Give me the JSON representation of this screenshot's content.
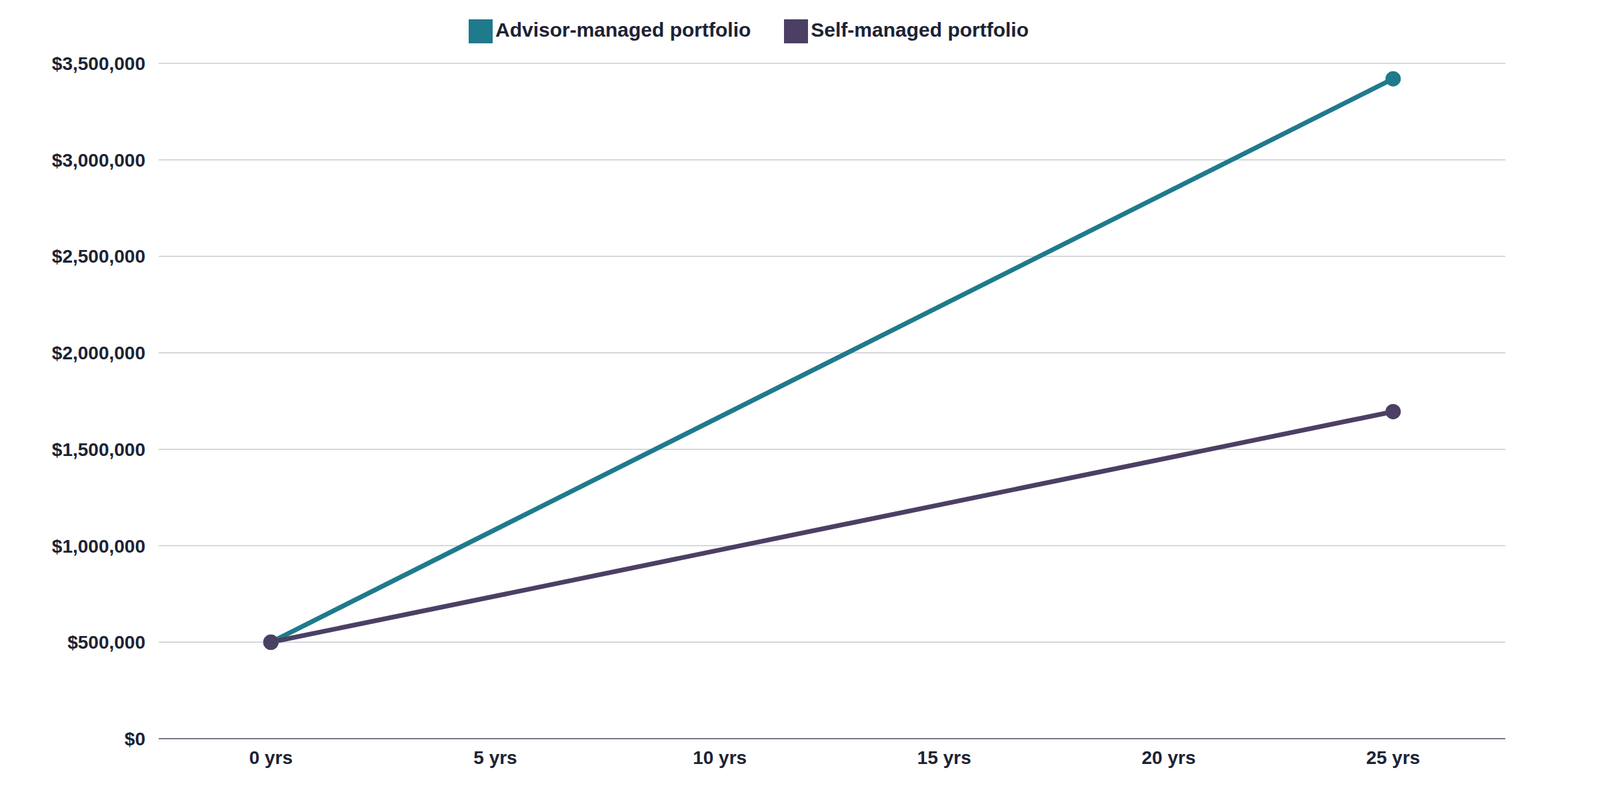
{
  "chart_data": {
    "type": "line",
    "x": [
      0,
      25
    ],
    "xlim": [
      -2.5,
      27.5
    ],
    "xticks": [
      {
        "value": 0,
        "label": "0 yrs"
      },
      {
        "value": 5,
        "label": "5 yrs"
      },
      {
        "value": 10,
        "label": "10 yrs"
      },
      {
        "value": 15,
        "label": "15 yrs"
      },
      {
        "value": 20,
        "label": "20 yrs"
      },
      {
        "value": 25,
        "label": "25 yrs"
      }
    ],
    "ylim": [
      0,
      3500000
    ],
    "yticks": [
      {
        "value": 0,
        "label": "$0"
      },
      {
        "value": 500000,
        "label": "$500,000"
      },
      {
        "value": 1000000,
        "label": "$1,000,000"
      },
      {
        "value": 1500000,
        "label": "$1,500,000"
      },
      {
        "value": 2000000,
        "label": "$2,000,000"
      },
      {
        "value": 2500000,
        "label": "$2,500,000"
      },
      {
        "value": 3000000,
        "label": "$3,000,000"
      },
      {
        "value": 3500000,
        "label": "$3,500,000"
      }
    ],
    "grid": true,
    "legend": "top",
    "marker": "circle",
    "series": [
      {
        "name": "Advisor-managed portfolio",
        "color": "#1f7a8c",
        "values": [
          500000,
          3420000
        ]
      },
      {
        "name": "Self-managed portfolio",
        "color": "#4b4063",
        "values": [
          500000,
          1695000
        ]
      }
    ]
  }
}
